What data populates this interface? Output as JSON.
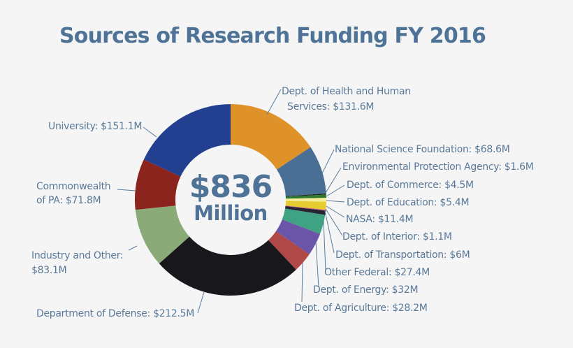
{
  "chart_data": {
    "type": "pie",
    "variant": "donut",
    "title": "Sources of Research Funding FY 2016",
    "center_text": {
      "amount": "$836",
      "unit": "Million"
    },
    "units": "$M",
    "start_angle_deg": 0,
    "direction": "clockwise",
    "slices": [
      {
        "label": "Dept. of Health and Human Services",
        "value": 131.6,
        "display": "Dept. of Health and Human Services: $131.6M",
        "color": "#e0922a"
      },
      {
        "label": "National Science Foundation",
        "value": 68.6,
        "display": "National Science Foundation: $68.6M",
        "color": "#4a6f94"
      },
      {
        "label": "Environmental Protection Agency",
        "value": 1.6,
        "display": "Environmental Protection Agency: $1.6M",
        "color": "#1c2a1c"
      },
      {
        "label": "Dept. of Commerce",
        "value": 4.5,
        "display": "Dept. of Commerce: $4.5M",
        "color": "#2f7a2f"
      },
      {
        "label": "Dept. of Education",
        "value": 5.4,
        "display": "Dept. of Education: $5.4M",
        "color": "#f4ee9a"
      },
      {
        "label": "NASA",
        "value": 11.4,
        "display": "NASA: $11.4M",
        "color": "#e6cc30"
      },
      {
        "label": "Dept. of Interior",
        "value": 1.1,
        "display": "Dept. of Interior: $1.1M",
        "color": "#c0508a"
      },
      {
        "label": "Dept. of Transportation",
        "value": 6.0,
        "display": "Dept. of Transportation: $6M",
        "color": "#262433"
      },
      {
        "label": "Other Federal",
        "value": 27.4,
        "display": "Other Federal: $27.4M",
        "color": "#3fa383"
      },
      {
        "label": "Dept. of Energy",
        "value": 32.0,
        "display": "Dept. of Energy: $32M",
        "color": "#6a55a8"
      },
      {
        "label": "Dept. of Agriculture",
        "value": 28.2,
        "display": "Dept. of Agriculture: $28.2M",
        "color": "#b04848"
      },
      {
        "label": "Department of Defense",
        "value": 212.5,
        "display": "Department of Defense: $212.5M",
        "color": "#18171b"
      },
      {
        "label": "Industry and Other",
        "value": 83.1,
        "display": "Industry and Other: $83.1M",
        "color": "#8aab78"
      },
      {
        "label": "Commonwealth of PA",
        "value": 71.8,
        "display": "Commonwealth of PA: $71.8M",
        "color": "#8a241c"
      },
      {
        "label": "University",
        "value": 151.1,
        "display": "University: $151.1M",
        "color": "#233f8f"
      }
    ]
  },
  "labels": {
    "hhs_line1": "Dept. of Health and Human",
    "hhs_line2": "Services: $131.6M",
    "nsf": "National Science Foundation: $68.6M",
    "epa": "Environmental Protection Agency: $1.6M",
    "commerce": "Dept. of Commerce: $4.5M",
    "education": "Dept. of Education: $5.4M",
    "nasa": "NASA: $11.4M",
    "interior": "Dept. of Interior: $1.1M",
    "transportation": "Dept. of Transportation: $6M",
    "other_federal": "Other Federal: $27.4M",
    "energy": "Dept. of Energy: $32M",
    "agriculture": "Dept. of Agriculture: $28.2M",
    "defense": "Department of Defense: $212.5M",
    "industry_line1": "Industry and Other:",
    "industry_line2": "$83.1M",
    "commonwealth_line1": "Commonwealth",
    "commonwealth_line2": "of PA: $71.8M",
    "university": "University: $151.1M"
  },
  "colors": {
    "background": "#f5f5f5",
    "title": "#4e7396",
    "label": "#5a7a9a",
    "leader": "#5a7a9a"
  }
}
